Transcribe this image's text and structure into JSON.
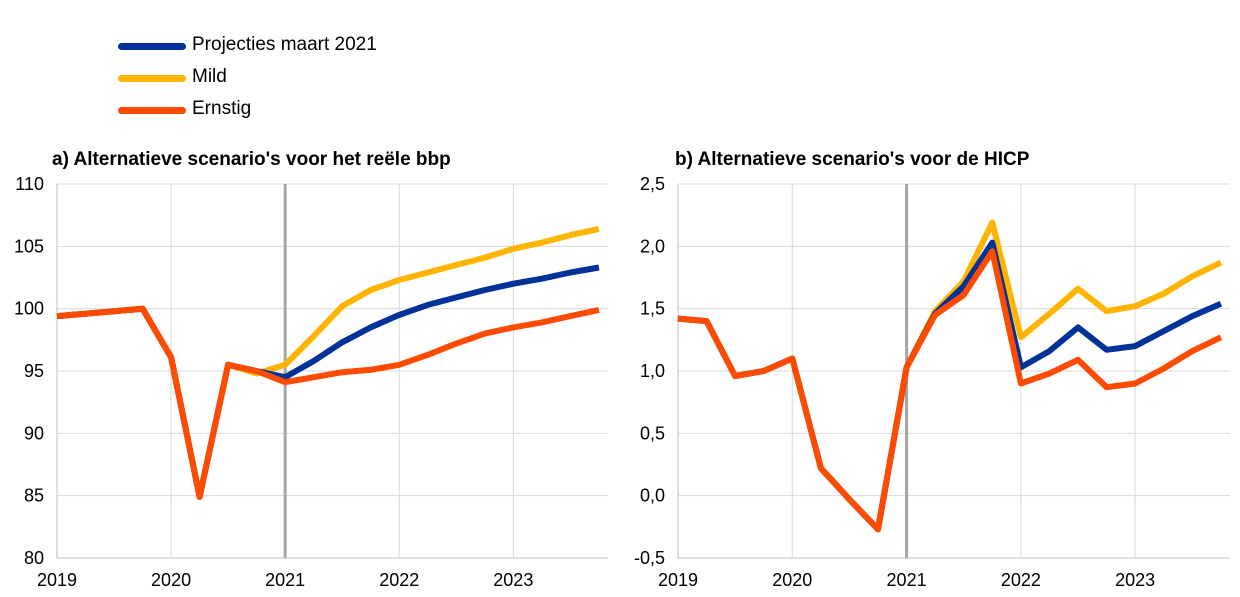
{
  "legend": [
    {
      "name": "Projecties maart 2021",
      "color": "#003299"
    },
    {
      "name": "Mild",
      "color": "#FFB400"
    },
    {
      "name": "Ernstig",
      "color": "#FF4B00"
    }
  ],
  "chart_data": [
    {
      "type": "line",
      "title": "a) Alternatieve  scenario's voor het reële bbp",
      "xlabel": "",
      "ylabel": "",
      "x_tick_labels": [
        "2019",
        "2020",
        "2021",
        "2022",
        "2023"
      ],
      "y_tick_labels": [
        "80",
        "85",
        "90",
        "95",
        "100",
        "105",
        "110"
      ],
      "ylim": [
        80,
        110
      ],
      "xlim": [
        2019.0,
        2023.83
      ],
      "vertical_marker": 2021.0,
      "grid": true,
      "series": [
        {
          "name": "Projecties maart 2021",
          "color": "#003299",
          "x": [
            2019.0,
            2019.25,
            2019.5,
            2019.75,
            2020.0,
            2020.25,
            2020.5,
            2020.75,
            2021.0,
            2021.25,
            2021.5,
            2021.75,
            2022.0,
            2022.25,
            2022.5,
            2022.75,
            2023.0,
            2023.25,
            2023.5,
            2023.75
          ],
          "values": [
            99.4,
            99.6,
            99.8,
            100.0,
            96.1,
            84.9,
            95.5,
            95.0,
            94.5,
            95.8,
            97.3,
            98.5,
            99.5,
            100.3,
            100.9,
            101.5,
            102.0,
            102.4,
            102.9,
            103.3
          ]
        },
        {
          "name": "Mild",
          "color": "#FFB400",
          "x": [
            2019.0,
            2019.25,
            2019.5,
            2019.75,
            2020.0,
            2020.25,
            2020.5,
            2020.75,
            2021.0,
            2021.25,
            2021.5,
            2021.75,
            2022.0,
            2022.25,
            2022.5,
            2022.75,
            2023.0,
            2023.25,
            2023.5,
            2023.75
          ],
          "values": [
            99.4,
            99.6,
            99.8,
            100.0,
            96.1,
            84.9,
            95.5,
            94.8,
            95.5,
            97.8,
            100.2,
            101.5,
            102.3,
            102.9,
            103.5,
            104.1,
            104.8,
            105.3,
            105.9,
            106.4
          ]
        },
        {
          "name": "Ernstig",
          "color": "#FF4B00",
          "x": [
            2019.0,
            2019.25,
            2019.5,
            2019.75,
            2020.0,
            2020.25,
            2020.5,
            2020.75,
            2021.0,
            2021.25,
            2021.5,
            2021.75,
            2022.0,
            2022.25,
            2022.5,
            2022.75,
            2023.0,
            2023.25,
            2023.5,
            2023.75
          ],
          "values": [
            99.4,
            99.6,
            99.8,
            100.0,
            96.1,
            84.9,
            95.5,
            95.0,
            94.1,
            94.5,
            94.9,
            95.1,
            95.5,
            96.3,
            97.2,
            98.0,
            98.5,
            98.9,
            99.4,
            99.9
          ]
        }
      ]
    },
    {
      "type": "line",
      "title": "b) Alternatieve  scenario's voor de HICP",
      "xlabel": "",
      "ylabel": "",
      "x_tick_labels": [
        "2019",
        "2020",
        "2021",
        "2022",
        "2023"
      ],
      "y_tick_labels": [
        "-0,5",
        "0,0",
        "0,5",
        "1,0",
        "1,5",
        "2,0",
        "2,5"
      ],
      "ylim": [
        -0.5,
        2.5
      ],
      "xlim": [
        2019.0,
        2023.83
      ],
      "vertical_marker": 2021.0,
      "grid": true,
      "series": [
        {
          "name": "Projecties maart 2021",
          "color": "#003299",
          "x": [
            2019.0,
            2019.25,
            2019.5,
            2019.75,
            2020.0,
            2020.25,
            2020.5,
            2020.75,
            2021.0,
            2021.25,
            2021.5,
            2021.75,
            2022.0,
            2022.25,
            2022.5,
            2022.75,
            2023.0,
            2023.25,
            2023.5,
            2023.75
          ],
          "values": [
            1.42,
            1.4,
            0.96,
            1.0,
            1.1,
            0.22,
            -0.03,
            -0.27,
            1.03,
            1.46,
            1.68,
            2.03,
            1.03,
            1.16,
            1.35,
            1.17,
            1.2,
            1.32,
            1.44,
            1.54
          ]
        },
        {
          "name": "Mild",
          "color": "#FFB400",
          "x": [
            2019.0,
            2019.25,
            2019.5,
            2019.75,
            2020.0,
            2020.25,
            2020.5,
            2020.75,
            2021.0,
            2021.25,
            2021.5,
            2021.75,
            2022.0,
            2022.25,
            2022.5,
            2022.75,
            2023.0,
            2023.25,
            2023.5,
            2023.75
          ],
          "values": [
            1.42,
            1.4,
            0.96,
            1.0,
            1.1,
            0.22,
            -0.03,
            -0.27,
            1.03,
            1.48,
            1.72,
            2.19,
            1.27,
            1.46,
            1.66,
            1.48,
            1.52,
            1.62,
            1.76,
            1.87
          ]
        },
        {
          "name": "Ernstig",
          "color": "#FF4B00",
          "x": [
            2019.0,
            2019.25,
            2019.5,
            2019.75,
            2020.0,
            2020.25,
            2020.5,
            2020.75,
            2021.0,
            2021.25,
            2021.5,
            2021.75,
            2022.0,
            2022.25,
            2022.5,
            2022.75,
            2023.0,
            2023.25,
            2023.5,
            2023.75
          ],
          "values": [
            1.42,
            1.4,
            0.96,
            1.0,
            1.1,
            0.22,
            -0.03,
            -0.27,
            1.03,
            1.45,
            1.61,
            1.96,
            0.9,
            0.98,
            1.09,
            0.87,
            0.9,
            1.02,
            1.16,
            1.27
          ]
        }
      ]
    }
  ]
}
